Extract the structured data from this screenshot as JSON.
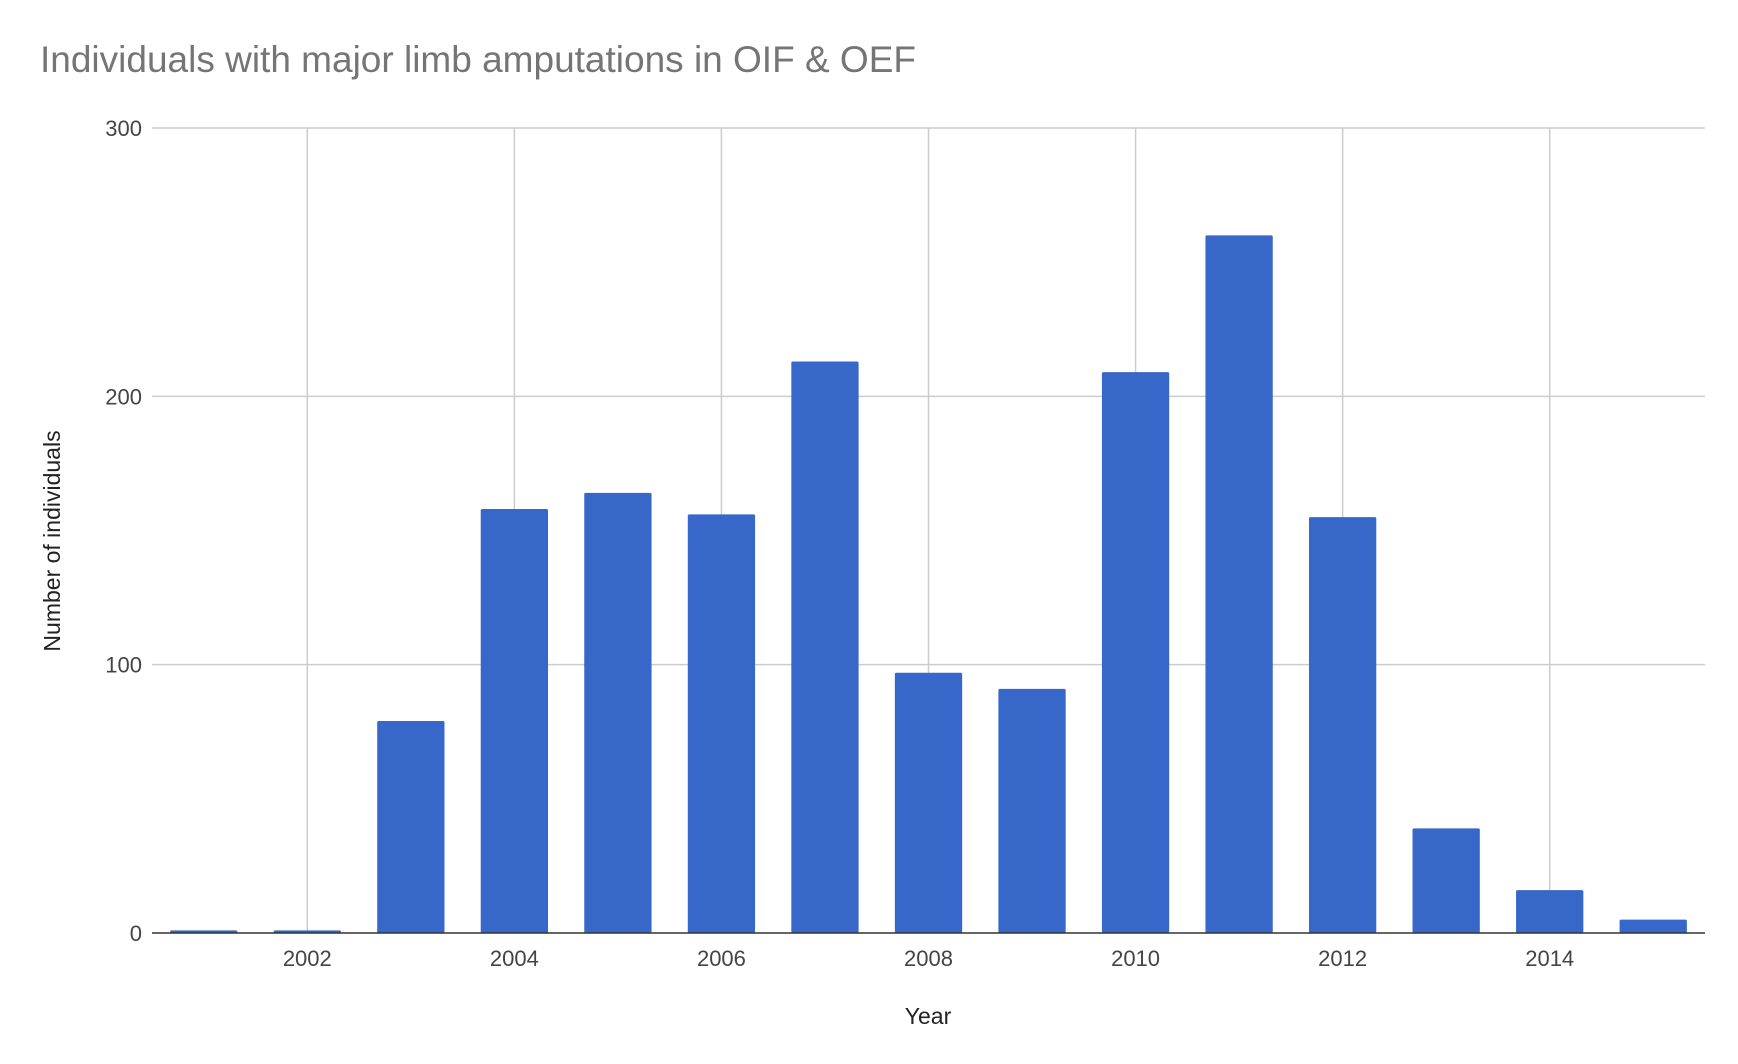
{
  "chart_data": {
    "type": "bar",
    "title": "Individuals with major limb amputations in OIF & OEF",
    "xlabel": "Year",
    "ylabel": "Number of individuals",
    "categories": [
      2001,
      2002,
      2003,
      2004,
      2005,
      2006,
      2007,
      2008,
      2009,
      2010,
      2011,
      2012,
      2013,
      2014,
      2015
    ],
    "values": [
      1,
      1,
      79,
      158,
      164,
      156,
      213,
      97,
      91,
      209,
      260,
      155,
      39,
      16,
      5
    ],
    "x_ticks": [
      2002,
      2004,
      2006,
      2008,
      2010,
      2012,
      2014
    ],
    "x_tick_labels": [
      "2002",
      "2004",
      "2006",
      "2008",
      "2010",
      "2012",
      "2014"
    ],
    "xlim": [
      2000.5,
      2015.5
    ],
    "ylim": [
      0,
      300
    ],
    "y_ticks": [
      0,
      100,
      200,
      300
    ],
    "y_tick_labels": [
      "0",
      "100",
      "200",
      "300"
    ],
    "grid": true,
    "legend": "none",
    "bar_color": "#3768c9",
    "grid_color": "#cccccc",
    "axis_color": "#333333"
  }
}
